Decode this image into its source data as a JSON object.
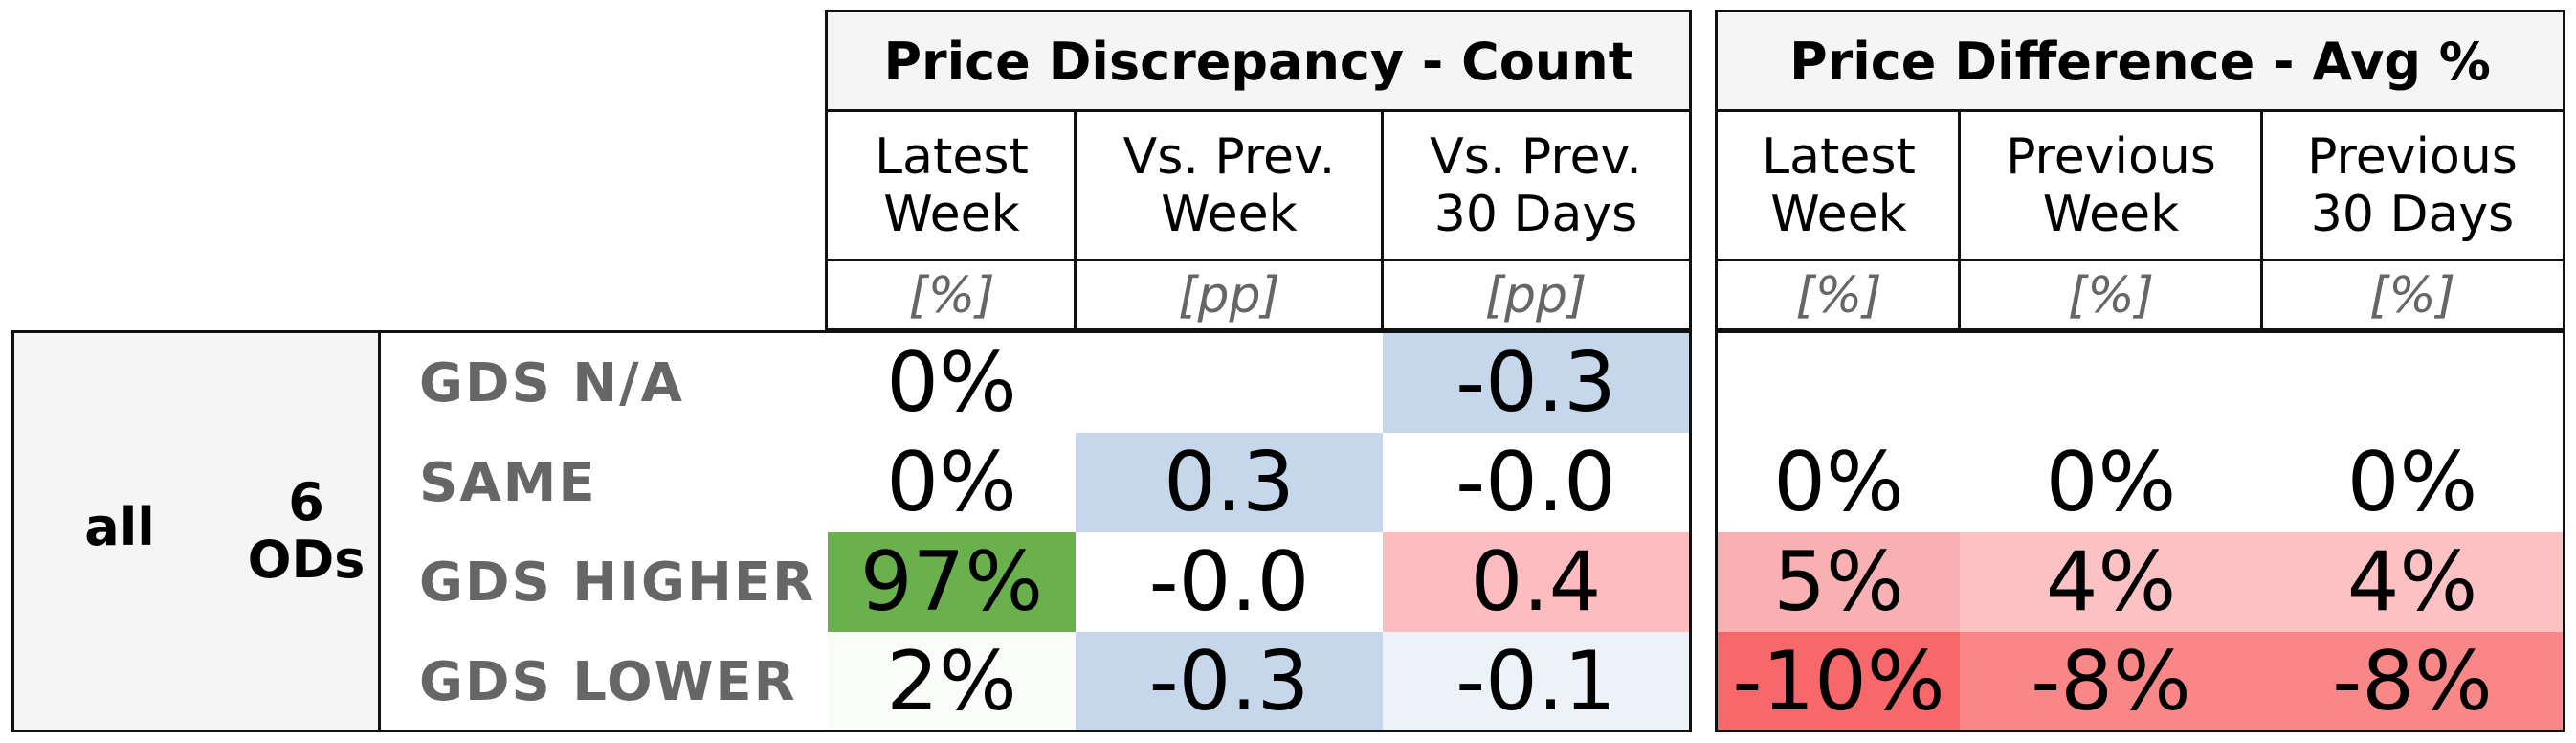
{
  "chart_data": {
    "type": "table",
    "row_group": {
      "label": "all",
      "count": "6\nODs"
    },
    "column_groups": [
      {
        "title": "Price Discrepancy - Count",
        "columns": [
          {
            "label": "Latest\nWeek",
            "unit": "[%]"
          },
          {
            "label": "Vs. Prev.\nWeek",
            "unit": "[pp]"
          },
          {
            "label": "Vs. Prev.\n30 Days",
            "unit": "[pp]"
          }
        ]
      },
      {
        "title": "Price Difference - Avg %",
        "columns": [
          {
            "label": "Latest\nWeek",
            "unit": "[%]"
          },
          {
            "label": "Previous\nWeek",
            "unit": "[%]"
          },
          {
            "label": "Previous\n30 Days",
            "unit": "[%]"
          }
        ]
      }
    ],
    "rows": [
      {
        "label": "GDS N/A",
        "values": [
          "0%",
          "",
          "-0.3",
          "",
          "",
          ""
        ]
      },
      {
        "label": "SAME",
        "values": [
          "0%",
          "0.3",
          "-0.0",
          "0%",
          "0%",
          "0%"
        ]
      },
      {
        "label": "GDS HIGHER",
        "values": [
          "97%",
          "-0.0",
          "0.4",
          "5%",
          "4%",
          "4%"
        ]
      },
      {
        "label": "GDS LOWER",
        "values": [
          "2%",
          "-0.3",
          "-0.1",
          "-10%",
          "-8%",
          "-8%"
        ]
      }
    ],
    "cell_colors": [
      [
        "#ffffff",
        "#ffffff",
        "#c6d7ec",
        "#ffffff",
        "#ffffff",
        "#ffffff"
      ],
      [
        "#ffffff",
        "#c6d7ec",
        "#ffffff",
        "#ffffff",
        "#ffffff",
        "#ffffff"
      ],
      [
        "#6ab04c",
        "#ffffff",
        "#fcbcc0",
        "#f8b0b2",
        "#fbc1c3",
        "#fbc1c3"
      ],
      [
        "#fafcfa",
        "#c6d7ec",
        "#edf2f8",
        "#f86769",
        "#f98788",
        "#f98788"
      ]
    ]
  }
}
